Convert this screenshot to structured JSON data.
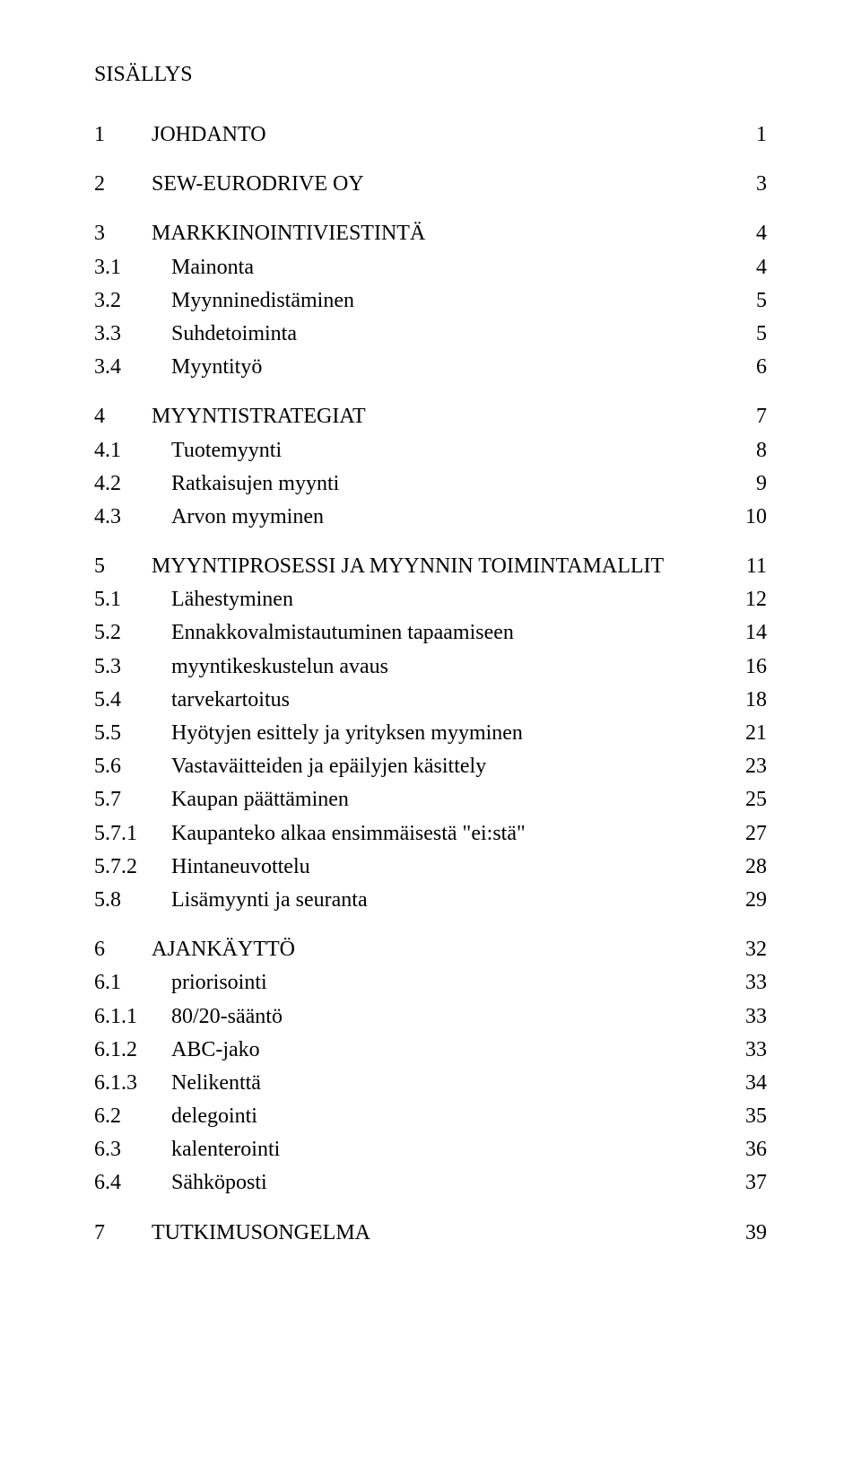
{
  "title": "SISÄLLYS",
  "toc": [
    {
      "level": 0,
      "num": "1",
      "label": "JOHDANTO",
      "page": "1"
    },
    {
      "level": 0,
      "num": "2",
      "label": "SEW-EURODRIVE OY",
      "page": "3"
    },
    {
      "level": 0,
      "num": "3",
      "label": "MARKKINOINTIVIESTINTÄ",
      "page": "4"
    },
    {
      "level": 1,
      "num": "3.1",
      "label": "Mainonta",
      "page": "4"
    },
    {
      "level": 1,
      "num": "3.2",
      "label": "Myynninedistäminen",
      "page": "5"
    },
    {
      "level": 1,
      "num": "3.3",
      "label": "Suhdetoiminta",
      "page": "5"
    },
    {
      "level": 1,
      "num": "3.4",
      "label": "Myyntityö",
      "page": "6"
    },
    {
      "level": 0,
      "num": "4",
      "label": "MYYNTISTRATEGIAT",
      "page": "7"
    },
    {
      "level": 1,
      "num": "4.1",
      "label": "Tuotemyynti",
      "page": "8"
    },
    {
      "level": 1,
      "num": "4.2",
      "label": "Ratkaisujen myynti",
      "page": "9"
    },
    {
      "level": 1,
      "num": "4.3",
      "label": "Arvon myyminen",
      "page": "10"
    },
    {
      "level": 0,
      "num": "5",
      "label": "MYYNTIPROSESSI JA MYYNNIN TOIMINTAMALLIT",
      "page": "11"
    },
    {
      "level": 1,
      "num": "5.1",
      "label": "Lähestyminen",
      "page": "12"
    },
    {
      "level": 1,
      "num": "5.2",
      "label": "Ennakkovalmistautuminen tapaamiseen",
      "page": "14"
    },
    {
      "level": 1,
      "num": "5.3",
      "label": "myyntikeskustelun avaus",
      "page": "16"
    },
    {
      "level": 1,
      "num": "5.4",
      "label": "tarvekartoitus",
      "page": "18"
    },
    {
      "level": 1,
      "num": "5.5",
      "label": "Hyötyjen esittely ja yrityksen myyminen",
      "page": "21"
    },
    {
      "level": 1,
      "num": "5.6",
      "label": "Vastaväitteiden ja epäilyjen käsittely",
      "page": "23"
    },
    {
      "level": 1,
      "num": "5.7",
      "label": "Kaupan päättäminen",
      "page": "25"
    },
    {
      "level": 2,
      "num": "5.7.1",
      "label": "Kaupanteko alkaa ensimmäisestä \"ei:stä\"",
      "page": "27"
    },
    {
      "level": 2,
      "num": "5.7.2",
      "label": "Hintaneuvottelu",
      "page": "28"
    },
    {
      "level": 1,
      "num": "5.8",
      "label": "Lisämyynti ja seuranta",
      "page": "29"
    },
    {
      "level": 0,
      "num": "6",
      "label": "AJANKÄYTTÖ",
      "page": "32"
    },
    {
      "level": 1,
      "num": "6.1",
      "label": "priorisointi",
      "page": "33"
    },
    {
      "level": 2,
      "num": "6.1.1",
      "label": "80/20-sääntö",
      "page": "33"
    },
    {
      "level": 2,
      "num": "6.1.2",
      "label": "ABC-jako",
      "page": "33"
    },
    {
      "level": 2,
      "num": "6.1.3",
      "label": "Nelikenttä",
      "page": "34"
    },
    {
      "level": 1,
      "num": "6.2",
      "label": "delegointi",
      "page": "35"
    },
    {
      "level": 1,
      "num": "6.3",
      "label": "kalenterointi",
      "page": "36"
    },
    {
      "level": 1,
      "num": "6.4",
      "label": "Sähköposti",
      "page": "37"
    },
    {
      "level": 0,
      "num": "7",
      "label": "TUTKIMUSONGELMA",
      "page": "39"
    }
  ]
}
